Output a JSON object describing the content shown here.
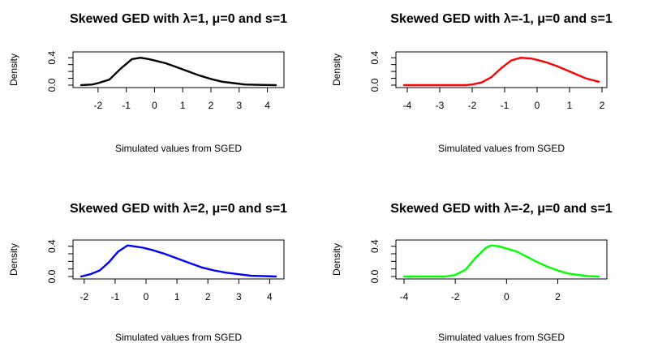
{
  "chart_data": [
    {
      "type": "line",
      "title": "Skewed GED with λ=1, μ=0 and s=1",
      "xlabel": "Simulated values from SGED",
      "ylabel": "Density",
      "xlim": [
        -2.6,
        4.3
      ],
      "ylim": [
        0.0,
        0.45
      ],
      "xticks": [
        "-2",
        "-1",
        "0",
        "1",
        "2",
        "3",
        "4"
      ],
      "yticks": [
        "0.0",
        "0.4"
      ],
      "color": "#000000",
      "series": [
        {
          "x": [
            -2.6,
            -2.2,
            -2.0,
            -1.6,
            -1.2,
            -0.8,
            -0.5,
            -0.2,
            0.0,
            0.4,
            0.8,
            1.2,
            1.6,
            2.0,
            2.4,
            2.8,
            3.2,
            3.6,
            4.0,
            4.3
          ],
          "y": [
            0.0,
            0.01,
            0.03,
            0.08,
            0.24,
            0.38,
            0.4,
            0.38,
            0.36,
            0.32,
            0.26,
            0.2,
            0.14,
            0.09,
            0.05,
            0.03,
            0.01,
            0.005,
            0.002,
            0.0
          ]
        }
      ]
    },
    {
      "type": "line",
      "title": "Skewed GED with λ=-1, μ=0 and s=1",
      "xlabel": "Simulated values from SGED",
      "ylabel": "Density",
      "xlim": [
        -4.1,
        1.9
      ],
      "ylim": [
        0.0,
        0.45
      ],
      "xticks": [
        "-4",
        "-3",
        "-2",
        "-1",
        "0",
        "1",
        "2"
      ],
      "yticks": [
        "0.0",
        "0.4"
      ],
      "color": "#ff0000",
      "series": [
        {
          "x": [
            -4.1,
            -3.5,
            -3.0,
            -2.5,
            -2.2,
            -2.0,
            -1.7,
            -1.4,
            -1.1,
            -0.8,
            -0.5,
            -0.2,
            0.0,
            0.3,
            0.6,
            0.9,
            1.2,
            1.5,
            1.9
          ],
          "y": [
            0.0,
            0.0,
            0.0,
            0.0,
            0.0,
            0.01,
            0.04,
            0.12,
            0.25,
            0.36,
            0.4,
            0.39,
            0.37,
            0.33,
            0.28,
            0.22,
            0.16,
            0.1,
            0.05
          ]
        }
      ]
    },
    {
      "type": "line",
      "title": "Skewed GED with λ=2, μ=0 and s=1",
      "xlabel": "Simulated values from SGED",
      "ylabel": "Density",
      "xlim": [
        -2.1,
        4.2
      ],
      "ylim": [
        0.0,
        0.45
      ],
      "xticks": [
        "-2",
        "-1",
        "0",
        "1",
        "2",
        "3",
        "4"
      ],
      "yticks": [
        "0.0",
        "0.4"
      ],
      "color": "#0000ff",
      "series": [
        {
          "x": [
            -2.1,
            -1.8,
            -1.5,
            -1.2,
            -0.9,
            -0.6,
            -0.4,
            -0.1,
            0.2,
            0.6,
            1.0,
            1.4,
            1.8,
            2.2,
            2.6,
            3.0,
            3.4,
            3.8,
            4.2
          ],
          "y": [
            0.0,
            0.03,
            0.08,
            0.19,
            0.33,
            0.41,
            0.4,
            0.38,
            0.35,
            0.3,
            0.24,
            0.18,
            0.12,
            0.08,
            0.05,
            0.03,
            0.01,
            0.005,
            0.0
          ]
        }
      ]
    },
    {
      "type": "line",
      "title": "Skewed GED with λ=-2, μ=0 and s=1",
      "xlabel": "Simulated values from SGED",
      "ylabel": "Density",
      "xlim": [
        -4.0,
        3.6
      ],
      "ylim": [
        0.0,
        0.45
      ],
      "xticks": [
        "-4",
        "-2",
        "0",
        "2"
      ],
      "yticks": [
        "0.0",
        "0.4"
      ],
      "color": "#00ff00",
      "series": [
        {
          "x": [
            -4.0,
            -3.0,
            -2.4,
            -2.0,
            -1.6,
            -1.2,
            -0.8,
            -0.6,
            -0.3,
            0.0,
            0.4,
            0.8,
            1.2,
            1.6,
            2.0,
            2.4,
            2.8,
            3.2,
            3.6
          ],
          "y": [
            0.0,
            0.0,
            0.0,
            0.02,
            0.09,
            0.25,
            0.38,
            0.41,
            0.4,
            0.37,
            0.33,
            0.26,
            0.19,
            0.13,
            0.08,
            0.04,
            0.02,
            0.005,
            0.0
          ]
        }
      ]
    }
  ]
}
